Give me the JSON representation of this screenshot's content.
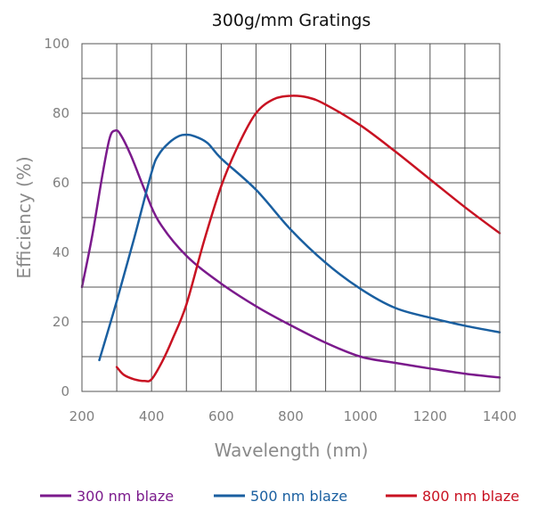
{
  "chart_data": {
    "type": "line",
    "title": "300g/mm Gratings",
    "xlabel": "Wavelength (nm)",
    "ylabel": "Efficiency  (%)",
    "xlim": [
      200,
      1400
    ],
    "ylim": [
      0,
      100
    ],
    "xticks": [
      200,
      400,
      600,
      800,
      1000,
      1200,
      1400
    ],
    "yticks": [
      0,
      20,
      40,
      60,
      80,
      100
    ],
    "xtick_labels": [
      "200",
      "400",
      "600",
      "800",
      "1000",
      "1200",
      "1400"
    ],
    "ytick_labels": [
      "0",
      "20",
      "40",
      "60",
      "80",
      "100"
    ],
    "grid": true,
    "legend_position": "bottom",
    "series": [
      {
        "name": "300 nm blaze",
        "color": "#7b1a8c",
        "x": [
          200,
          230,
          260,
          280,
          295,
          310,
          340,
          380,
          420,
          500,
          600,
          700,
          800,
          900,
          1000,
          1100,
          1200,
          1300,
          1400
        ],
        "y": [
          30,
          45,
          63,
          73,
          75,
          74,
          68,
          58,
          49,
          39,
          31,
          24.5,
          19,
          14,
          10,
          8.2,
          6.6,
          5.1,
          4
        ]
      },
      {
        "name": "500 nm blaze",
        "color": "#1a5fa0",
        "x": [
          250,
          300,
          350,
          400,
          420,
          450,
          480,
          500,
          520,
          560,
          600,
          700,
          800,
          900,
          1000,
          1100,
          1200,
          1300,
          1400
        ],
        "y": [
          9,
          26,
          44,
          63,
          68,
          71.5,
          73.5,
          73.8,
          73.5,
          71.5,
          67,
          58,
          46.5,
          37,
          29.5,
          24,
          21.2,
          18.9,
          17
        ]
      },
      {
        "name": "800 nm blaze",
        "color": "#c81222",
        "x": [
          300,
          320,
          350,
          380,
          400,
          430,
          460,
          500,
          550,
          600,
          650,
          700,
          750,
          800,
          850,
          900,
          1000,
          1100,
          1200,
          1300,
          1400
        ],
        "y": [
          7,
          4.8,
          3.5,
          3.0,
          3.5,
          8.5,
          15,
          25,
          43,
          59,
          71,
          80,
          84,
          85,
          84.5,
          82.5,
          76.5,
          69,
          61,
          53,
          45.5
        ]
      }
    ]
  }
}
